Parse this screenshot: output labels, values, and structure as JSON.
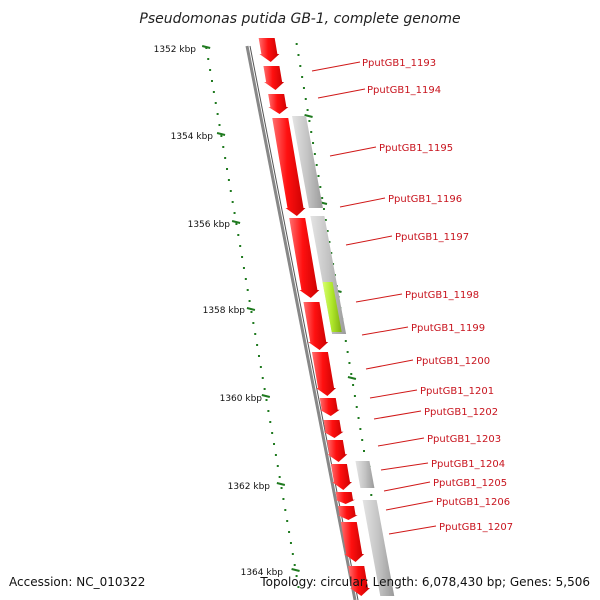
{
  "title": "Pseudomonas putida GB-1, complete genome",
  "footer": {
    "accession": "Accession: NC_010322",
    "topology": "Topology: circular; Length: 6,078,430 bp; Genes: 5,506"
  },
  "colors": {
    "forward_gene": "#f01010",
    "other_feature": "#bdbdbd",
    "highlight_feature": "#a8e020",
    "backbone": "#777777",
    "tick": "#1f7a1f",
    "label": "#c8141e"
  },
  "scale_labels": [
    "1352 kbp",
    "1354 kbp",
    "1356 kbp",
    "1358 kbp",
    "1360 kbp",
    "1362 kbp",
    "1364 kbp"
  ],
  "gene_labels": [
    "PputGB1_1193",
    "PputGB1_1194",
    "PputGB1_1195",
    "PputGB1_1196",
    "PputGB1_1197",
    "PputGB1_1198",
    "PputGB1_1199",
    "PputGB1_1200",
    "PputGB1_1201",
    "PputGB1_1202",
    "PputGB1_1203",
    "PputGB1_1204",
    "PputGB1_1205",
    "PputGB1_1206",
    "PputGB1_1207"
  ]
}
